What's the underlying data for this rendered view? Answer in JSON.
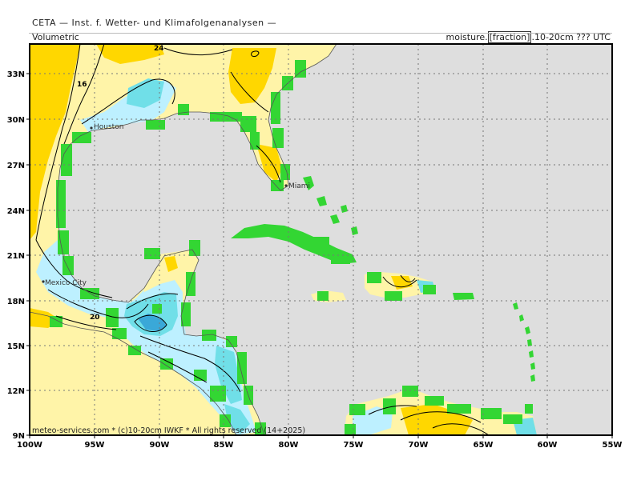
{
  "header": {
    "title": "CETA — Inst. f. Wetter- und Klimafolgenanalysen —",
    "left_label": "Volumetric",
    "var_prefix": "moisture.",
    "var_unit": "[fraction]",
    "var_suffix": ".10-20cm  ???  UTC"
  },
  "axes": {
    "lat_labels": [
      "33N",
      "30N",
      "27N",
      "24N",
      "21N",
      "18N",
      "15N",
      "12N",
      "9N"
    ],
    "lon_labels": [
      "100W",
      "95W",
      "90W",
      "85W",
      "80W",
      "75W",
      "70W",
      "65W",
      "60W",
      "55W"
    ]
  },
  "cities": {
    "houston": "Houston",
    "miami": "Miami",
    "mexico_city": "Mexico City"
  },
  "contour_labels": {
    "a": "24",
    "b": "16",
    "c": "20"
  },
  "footer": {
    "credit": "meteo-services.com  *  (c)10-20cm  IWKF  *  All rights reserved (14+2025)"
  },
  "colors": {
    "background": "#ffffff",
    "ocean": "#dedede",
    "land_missing": "#33d633",
    "dry": "#ffd700",
    "moderate": "#fff4a8",
    "moist": "#bdf0ff",
    "wet": "#70dfe8",
    "very_wet": "#3aa8d8"
  }
}
